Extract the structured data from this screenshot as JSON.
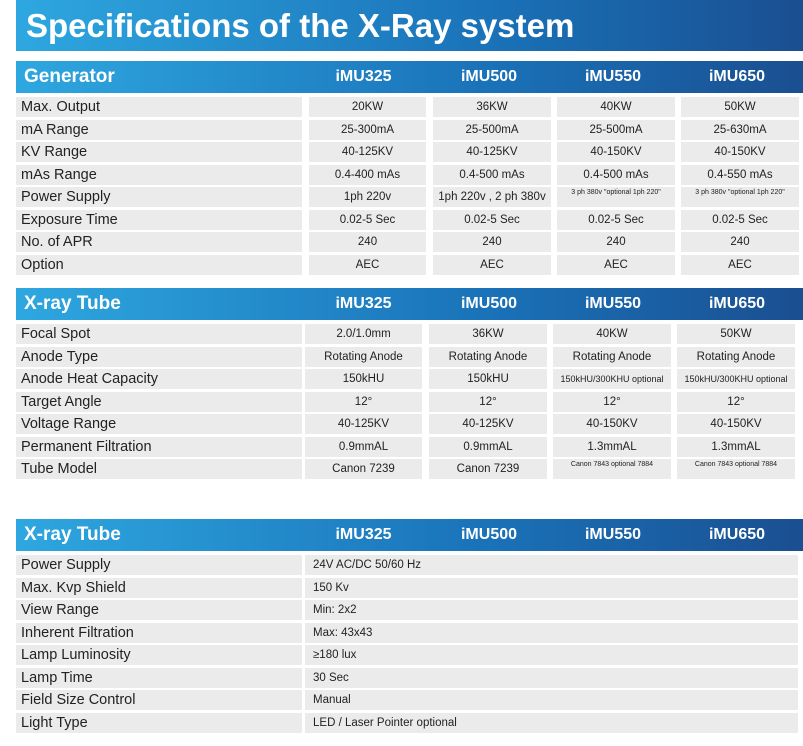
{
  "title": "Specifications of the X-Ray system",
  "sections": [
    {
      "title": "Generator",
      "models": [
        "iMU325",
        "iMU500",
        "iMU550",
        "iMU650"
      ],
      "rows": [
        {
          "label": "Max. Output",
          "values": [
            "20KW",
            "36KW",
            "40KW",
            "50KW"
          ]
        },
        {
          "label": "mA Range",
          "values": [
            "25-300mA",
            "25-500mA",
            "25-500mA",
            "25-630mA"
          ]
        },
        {
          "label": "KV Range",
          "values": [
            "40-125KV",
            "40-125KV",
            "40-150KV",
            "40-150KV"
          ]
        },
        {
          "label": "mAs Range",
          "values": [
            "0.4-400 mAs",
            "0.4-500 mAs",
            "0.4-500 mAs",
            "0.4-550 mAs"
          ]
        },
        {
          "label": "Power Supply",
          "values": [
            "1ph 220v",
            "1ph 220v , 2 ph 380v",
            "3 ph 380v \"optional 1ph 220\"",
            "3 ph 380v \"optional 1ph 220\""
          ]
        },
        {
          "label": "Exposure Time",
          "values": [
            "0.02-5 Sec",
            "0.02-5 Sec",
            "0.02-5 Sec",
            "0.02-5 Sec"
          ]
        },
        {
          "label": "No. of APR",
          "values": [
            "240",
            "240",
            "240",
            "240"
          ]
        },
        {
          "label": "Option",
          "values": [
            "AEC",
            "AEC",
            "AEC",
            "AEC"
          ]
        }
      ]
    },
    {
      "title": "X-ray Tube",
      "models": [
        "iMU325",
        "iMU500",
        "iMU550",
        "iMU650"
      ],
      "rows": [
        {
          "label": "Focal Spot",
          "values": [
            "2.0/1.0mm",
            "36KW",
            "40KW",
            "50KW"
          ]
        },
        {
          "label": "Anode Type",
          "values": [
            "Rotating Anode",
            "Rotating Anode",
            "Rotating Anode",
            "Rotating Anode"
          ]
        },
        {
          "label": "Anode Heat Capacity",
          "values": [
            "150kHU",
            "150kHU",
            "150kHU/300KHU optional",
            "150kHU/300KHU optional"
          ]
        },
        {
          "label": "Target Angle",
          "values": [
            "12°",
            "12°",
            "12°",
            "12°"
          ]
        },
        {
          "label": "Voltage Range",
          "values": [
            "40-125KV",
            "40-125KV",
            "40-150KV",
            "40-150KV"
          ]
        },
        {
          "label": "Permanent Filtration",
          "values": [
            "0.9mmAL",
            "0.9mmAL",
            "1.3mmAL",
            "1.3mmAL"
          ]
        },
        {
          "label": "Tube Model",
          "values": [
            "Canon 7239",
            "Canon 7239",
            "Canon 7843 optional 7884",
            "Canon 7843 optional 7884"
          ]
        }
      ]
    },
    {
      "title": "X-ray Tube",
      "models": [
        "iMU325",
        "iMU500",
        "iMU550",
        "iMU650"
      ],
      "rows": [
        {
          "label": "Power Supply",
          "value": "24V AC/DC 50/60 Hz"
        },
        {
          "label": "Max. Kvp Shield",
          "value": "150 Kv"
        },
        {
          "label": "View Range",
          "value": "Min: 2x2"
        },
        {
          "label": "Inherent Filtration",
          "value": "Max: 43x43"
        },
        {
          "label": "Lamp Luminosity",
          "value": "≥180 lux"
        },
        {
          "label": "Lamp Time",
          "value": "30 Sec"
        },
        {
          "label": "Field Size Control",
          "value": "Manual"
        },
        {
          "label": "Light Type",
          "value": "LED / Laser Pointer optional"
        }
      ]
    }
  ]
}
